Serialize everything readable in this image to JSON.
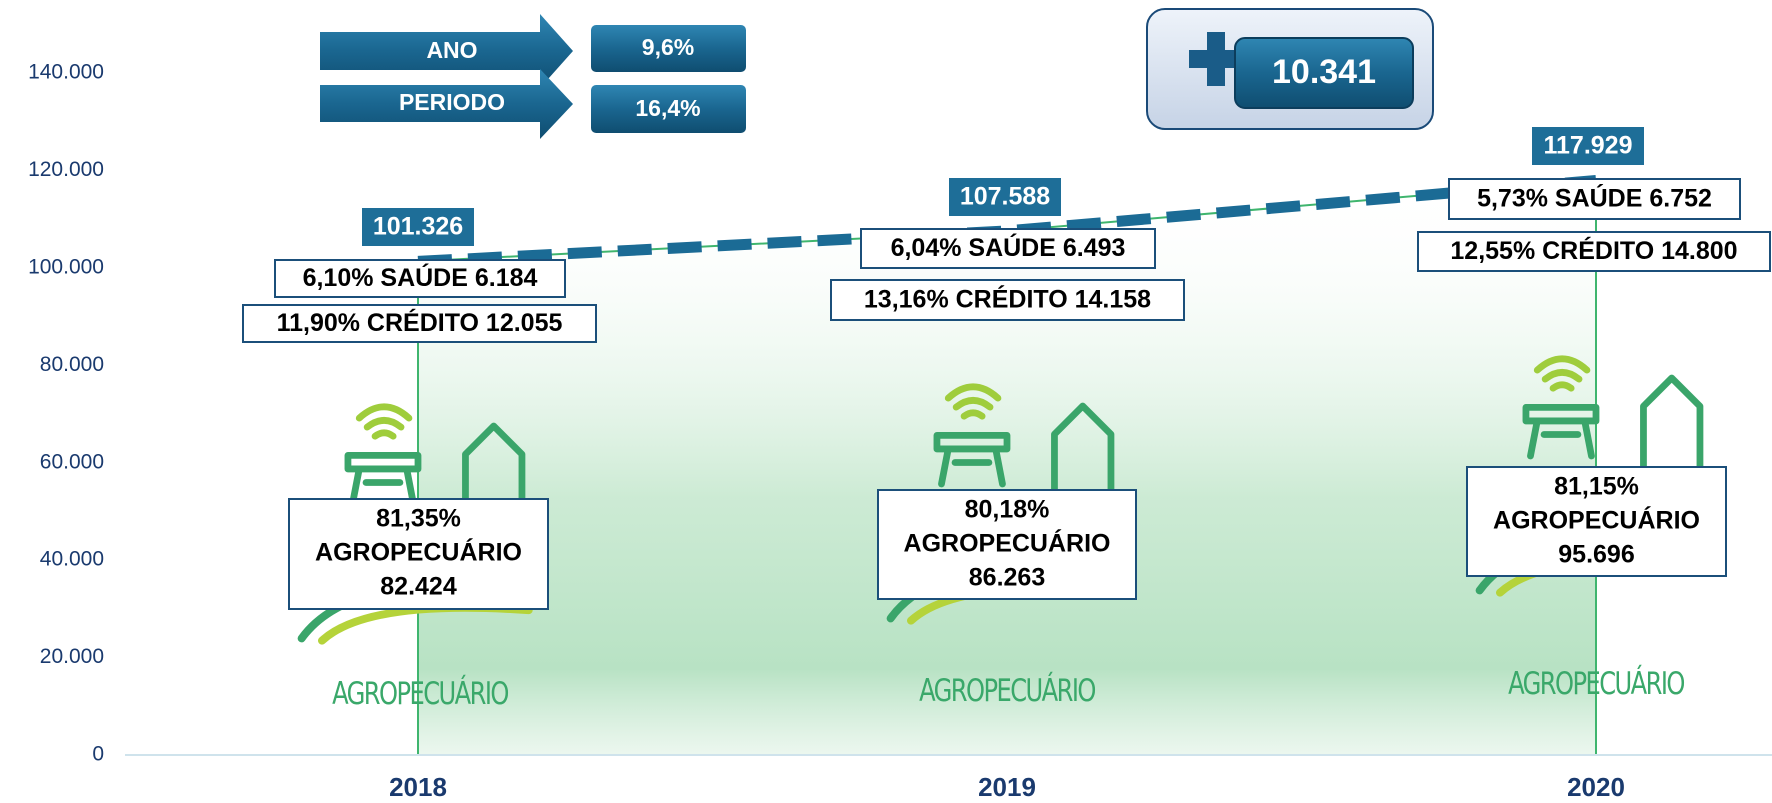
{
  "chart_data": {
    "type": "line",
    "categories": [
      "2018",
      "2019",
      "2020"
    ],
    "values": [
      101326,
      107588,
      117929
    ],
    "value_labels": [
      "101.326",
      "107.588",
      "117.929"
    ],
    "color": "#1b6b95",
    "area_color": "#3fb56e",
    "ylim": [
      0,
      140000
    ],
    "yticks": [
      0,
      {
        "value": 20000,
        "label": "20.000"
      },
      {
        "value": 40000,
        "label": "40.000"
      },
      {
        "value": 60000,
        "label": "60.000"
      },
      {
        "value": 80000,
        "label": "80.000"
      },
      {
        "value": 100000,
        "label": "100.000"
      },
      {
        "value": 120000,
        "label": "120.000"
      },
      {
        "value": 140000,
        "label": "140.000"
      }
    ],
    "annotations": [
      {
        "saude": "6,10% SAÚDE 6.184",
        "credito": "11,90% CRÉDITO 12.055",
        "agro": [
          "81,35%",
          "AGROPECUÁRIO",
          "82.424"
        ]
      },
      {
        "saude": "6,04% SAÚDE 6.493",
        "credito": "13,16% CRÉDITO 14.158",
        "agro": [
          "80,18%",
          "AGROPECUÁRIO",
          "86.263"
        ]
      },
      {
        "saude": "5,73% SAÚDE 6.752",
        "credito": "12,55% CRÉDITO 14.800",
        "agro": [
          "81,15%",
          "AGROPECUÁRIO",
          "95.696"
        ]
      }
    ],
    "logo_text": "AGROPECUÁRIO",
    "growth": [
      {
        "label": "ANO",
        "value": "9,6%"
      },
      {
        "label": "PERIODO",
        "value": "16,4%"
      }
    ],
    "difference": "10.341"
  }
}
